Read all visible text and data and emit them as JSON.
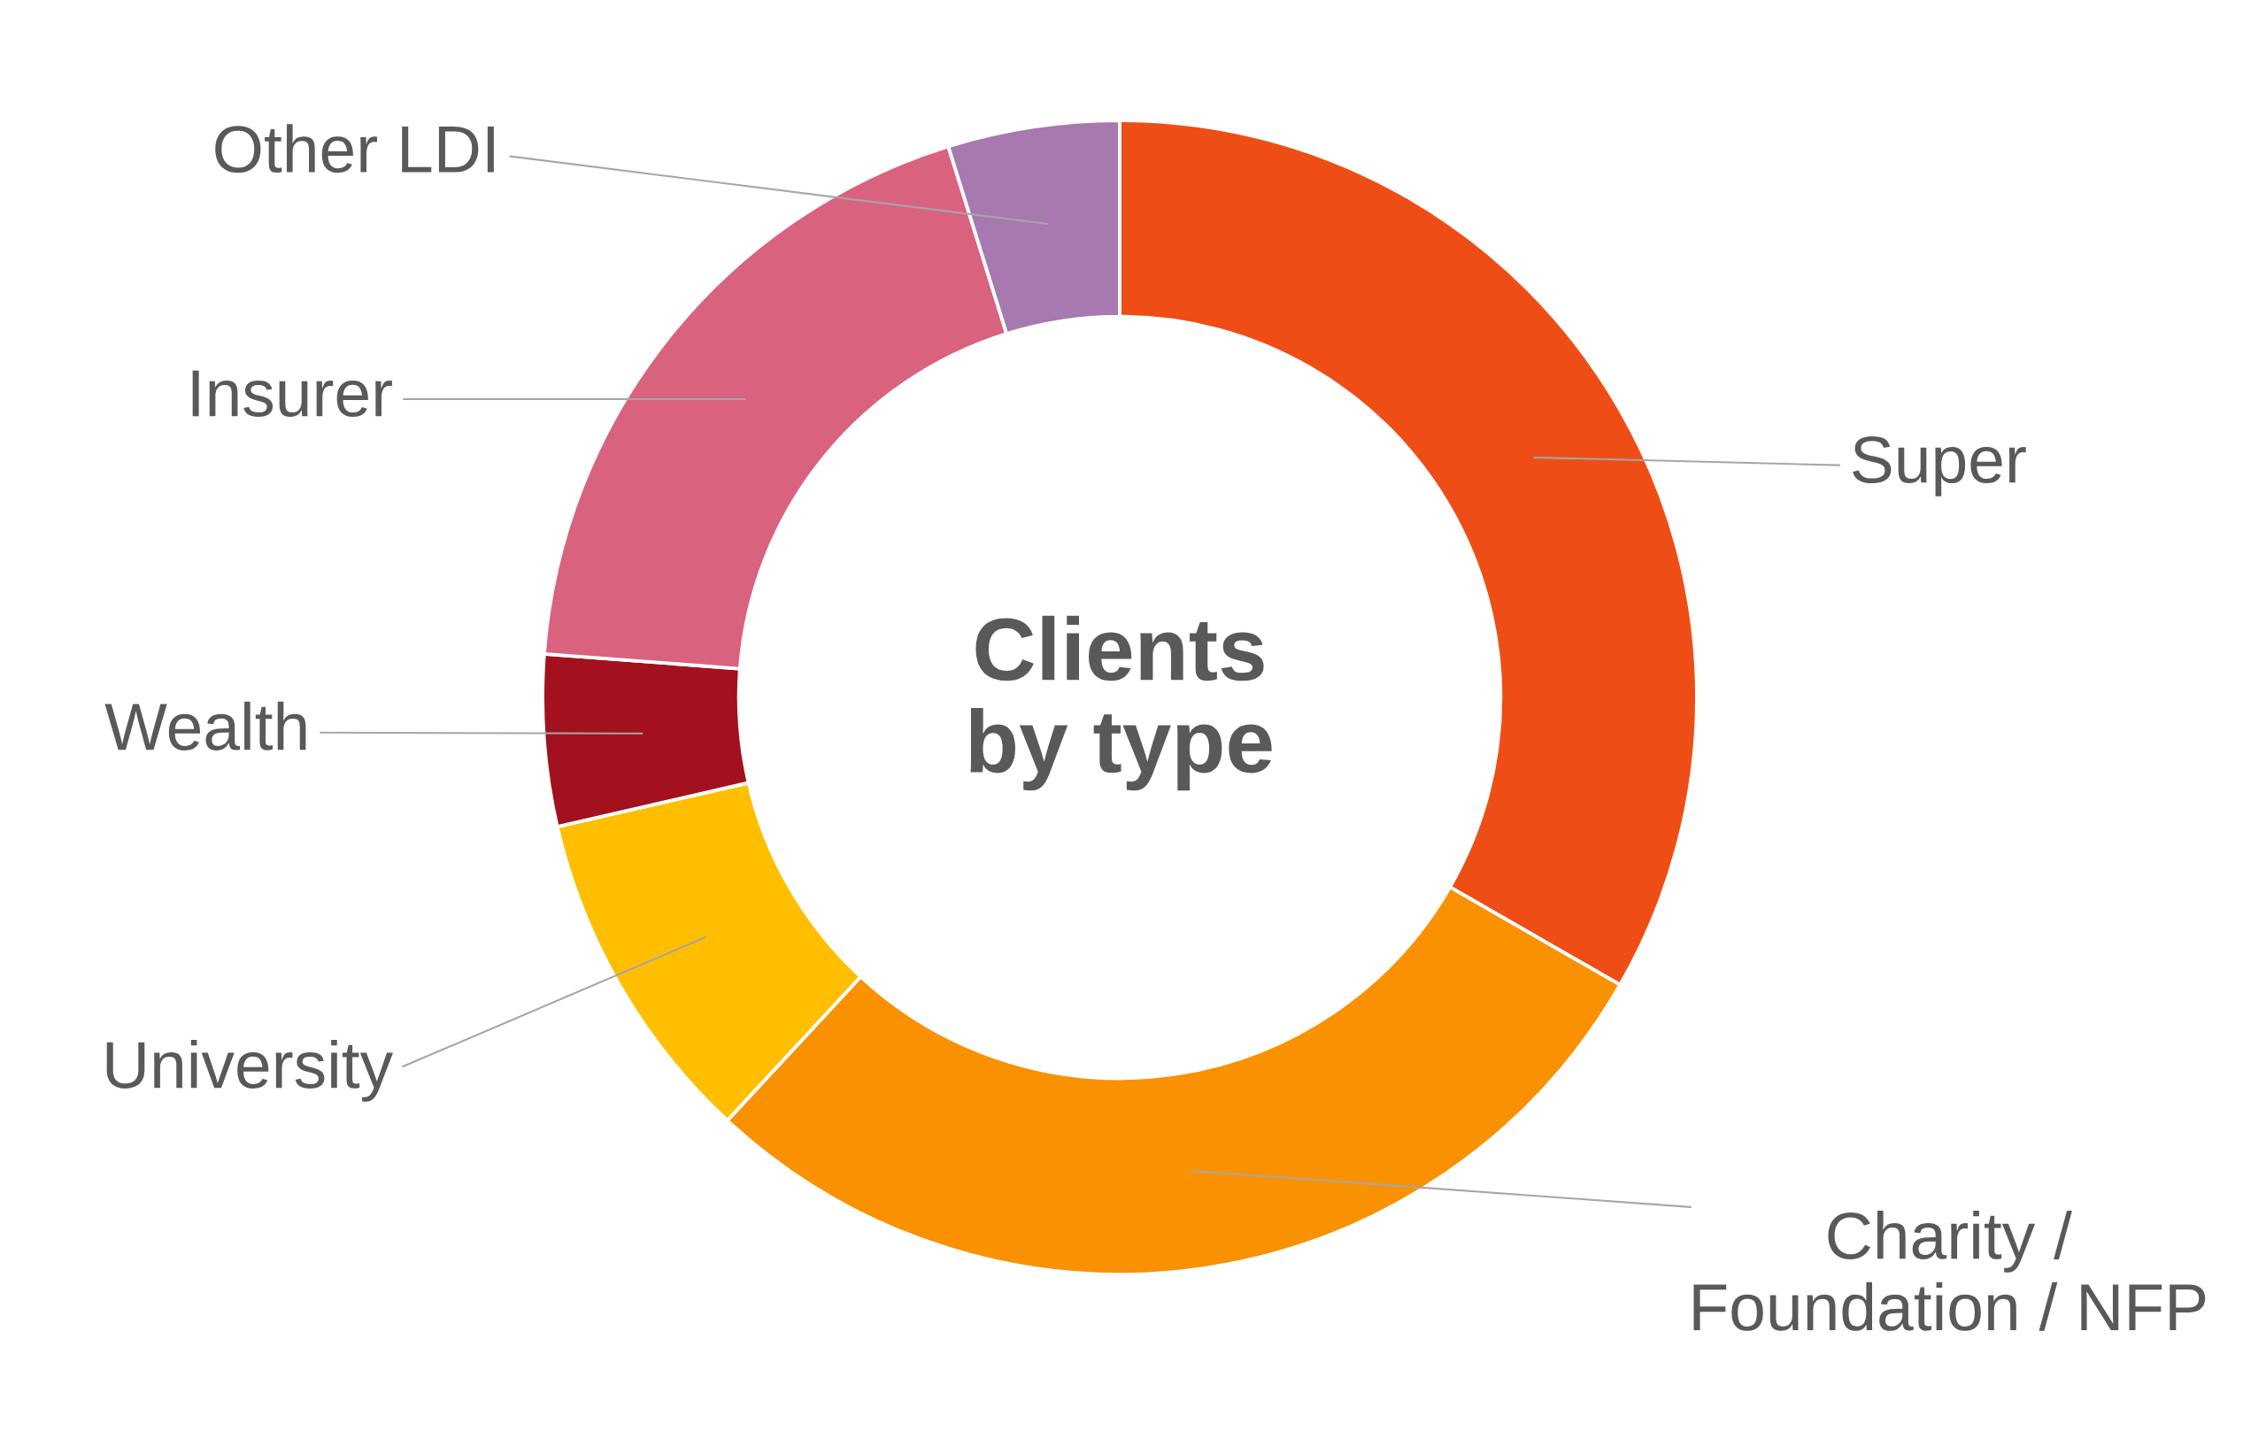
{
  "chart_data": {
    "type": "donut",
    "title": "Clients by type",
    "categories": [
      "Super",
      "Charity / Foundation / NFP",
      "University",
      "Wealth",
      "Insurer",
      "Other LDI"
    ],
    "values": [
      33.3,
      28.6,
      9.5,
      4.8,
      19.0,
      4.8
    ],
    "colors": [
      "#ee4e16",
      "#fa9100",
      "#ffbf00",
      "#a3111e",
      "#d9627f",
      "#a878b0"
    ]
  }
}
